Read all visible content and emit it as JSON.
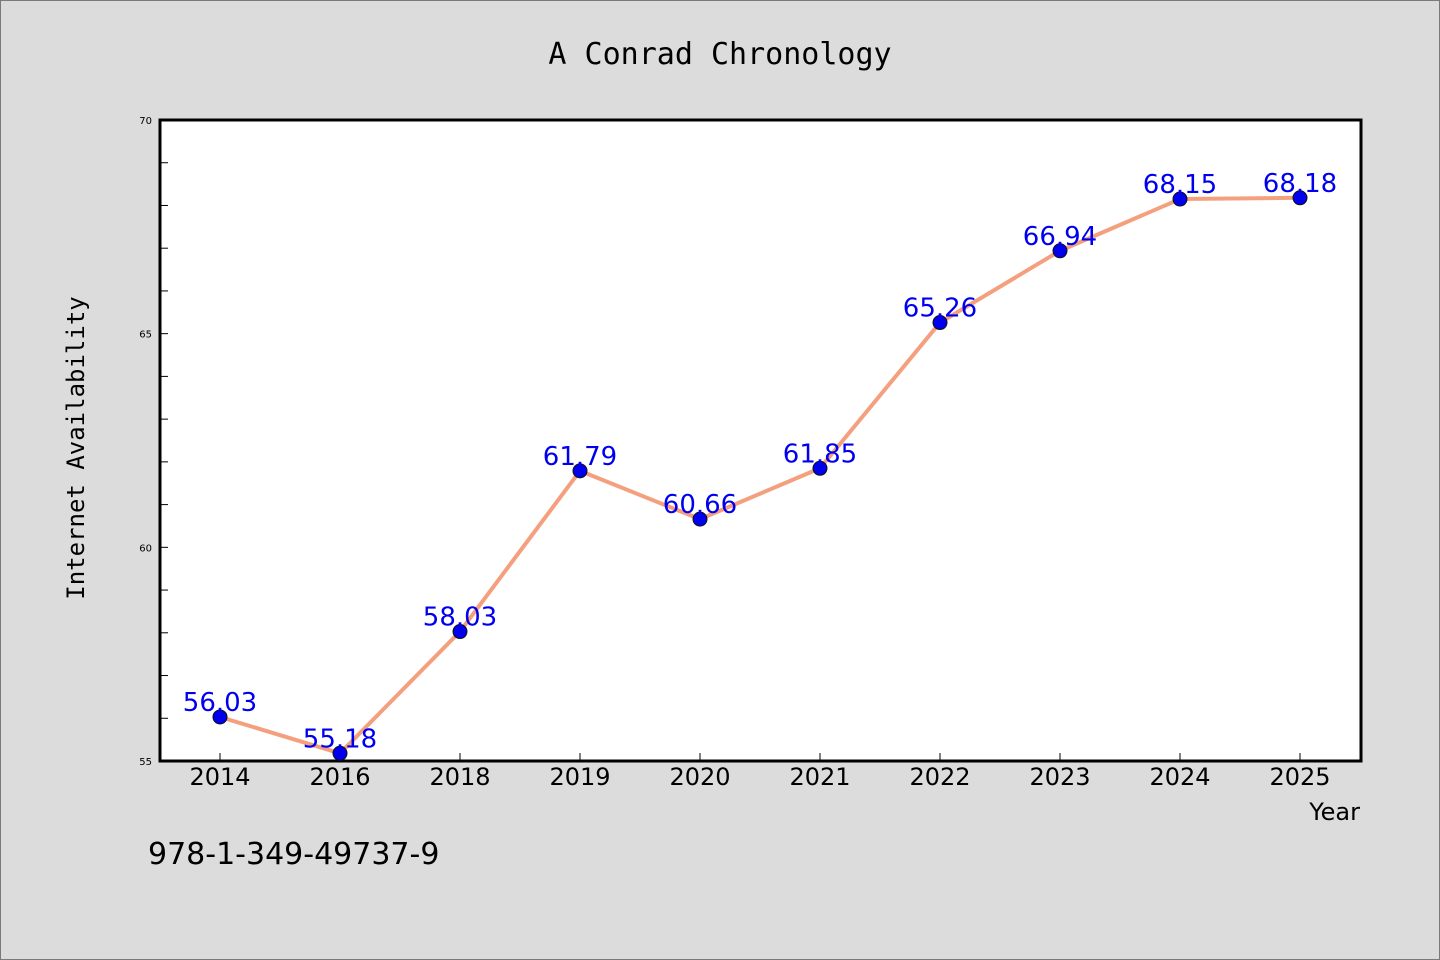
{
  "chart_data": {
    "type": "line",
    "title": "A Conrad Chronology",
    "xlabel": "Year",
    "ylabel": "Internet Availability",
    "categories": [
      "2014",
      "2016",
      "2018",
      "2019",
      "2020",
      "2021",
      "2022",
      "2023",
      "2024",
      "2025"
    ],
    "series": [
      {
        "values": [
          56.03,
          55.18,
          58.03,
          61.79,
          60.66,
          61.85,
          65.26,
          66.94,
          68.15,
          68.18
        ],
        "data_labels": [
          "56.03",
          "55.18",
          "58.03",
          "61.79",
          "60.66",
          "61.85",
          "65.26",
          "66.94",
          "68.15",
          "68.18"
        ],
        "line_color": "#f4a07e",
        "marker_color": "#0000ee",
        "label_color": "#0000ee"
      }
    ],
    "ylim": [
      55,
      70
    ],
    "y_ticks": [
      "55",
      "60",
      "65",
      "70"
    ],
    "grid": false,
    "legend": "none",
    "background_color": "#dcdcdc",
    "plot_background_color": "#ffffff"
  },
  "footer": {
    "isbn": "978-1-349-49737-9"
  }
}
